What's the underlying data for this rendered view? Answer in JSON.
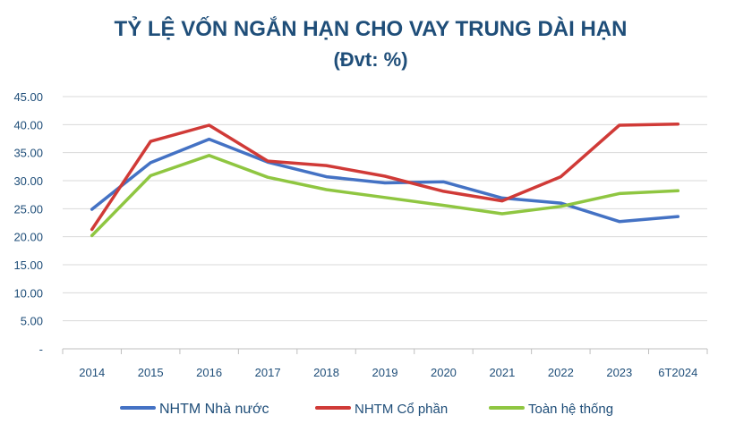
{
  "chart_data": {
    "type": "line",
    "title": "TỶ LỆ VỐN NGẮN HẠN CHO VAY TRUNG DÀI HẠN",
    "subtitle": "(Đvt: %)",
    "categories": [
      "2014",
      "2015",
      "2016",
      "2017",
      "2018",
      "2019",
      "2020",
      "2021",
      "2022",
      "2023",
      "6T2024"
    ],
    "ylim": [
      0,
      45
    ],
    "yticks": [
      "-",
      "5.00",
      "10.00",
      "15.00",
      "20.00",
      "25.00",
      "30.00",
      "35.00",
      "40.00",
      "45.00"
    ],
    "grid": true,
    "legend_position": "bottom",
    "series": [
      {
        "name": "NHTM Nhà nước",
        "color": "#4472c4",
        "values": [
          24.9,
          33.2,
          37.4,
          33.3,
          30.7,
          29.6,
          29.8,
          26.9,
          26.0,
          22.7,
          23.6
        ]
      },
      {
        "name": "NHTM Cổ phần",
        "color": "#d03a37",
        "values": [
          21.3,
          37.0,
          39.9,
          33.5,
          32.7,
          30.8,
          28.1,
          26.4,
          30.7,
          39.9,
          40.1
        ]
      },
      {
        "name": "Toàn hệ thống",
        "color": "#8fc641",
        "values": [
          20.2,
          30.9,
          34.5,
          30.6,
          28.4,
          27.0,
          25.6,
          24.1,
          25.4,
          27.7,
          28.2
        ]
      }
    ]
  }
}
